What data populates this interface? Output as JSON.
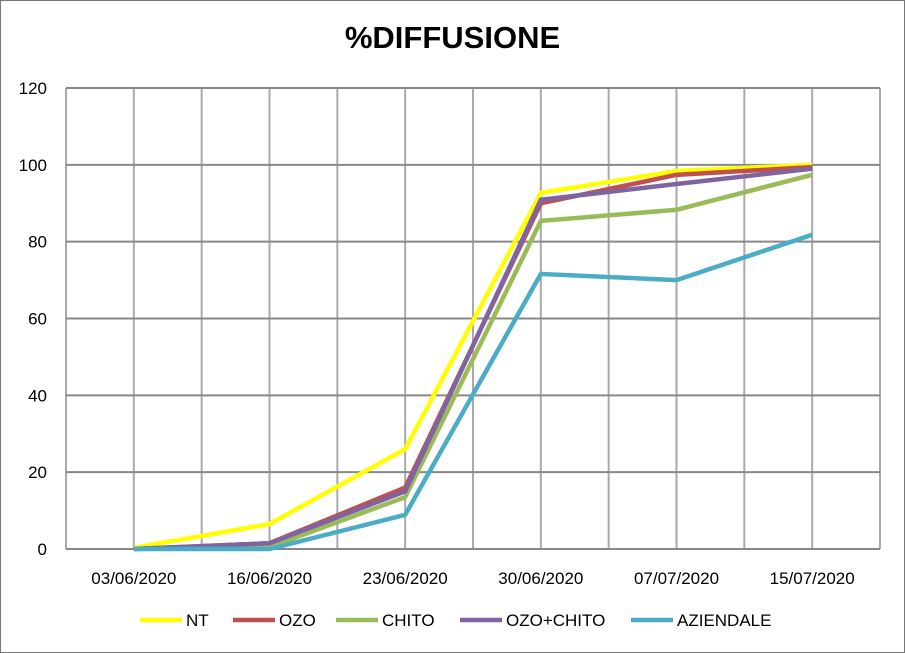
{
  "chart_data": {
    "type": "line",
    "title": "%DIFFUSIONE",
    "categories": [
      "03/06/2020",
      "16/06/2020",
      "23/06/2020",
      "30/06/2020",
      "07/07/2020",
      "15/07/2020"
    ],
    "ylim": [
      0,
      120
    ],
    "yticks": [
      0,
      20,
      40,
      60,
      80,
      100,
      120
    ],
    "grid": true,
    "legend": "bottom",
    "series": [
      {
        "name": "NT",
        "color": "#FFFF00",
        "values": [
          0.3,
          6.5,
          26,
          92.7,
          98.4,
          100
        ]
      },
      {
        "name": "OZO",
        "color": "#C0504D",
        "values": [
          0,
          1.5,
          16,
          90,
          97.4,
          99.4
        ]
      },
      {
        "name": "CHITO",
        "color": "#9BBB59",
        "values": [
          0,
          0.5,
          13.5,
          85.4,
          88.3,
          97.4
        ]
      },
      {
        "name": "OZO+CHITO",
        "color": "#8064A2",
        "values": [
          0,
          1.5,
          15,
          90.9,
          95,
          99
        ]
      },
      {
        "name": "AZIENDALE",
        "color": "#4BACC6",
        "values": [
          0,
          0,
          8.9,
          71.6,
          70,
          81.8
        ]
      }
    ]
  }
}
